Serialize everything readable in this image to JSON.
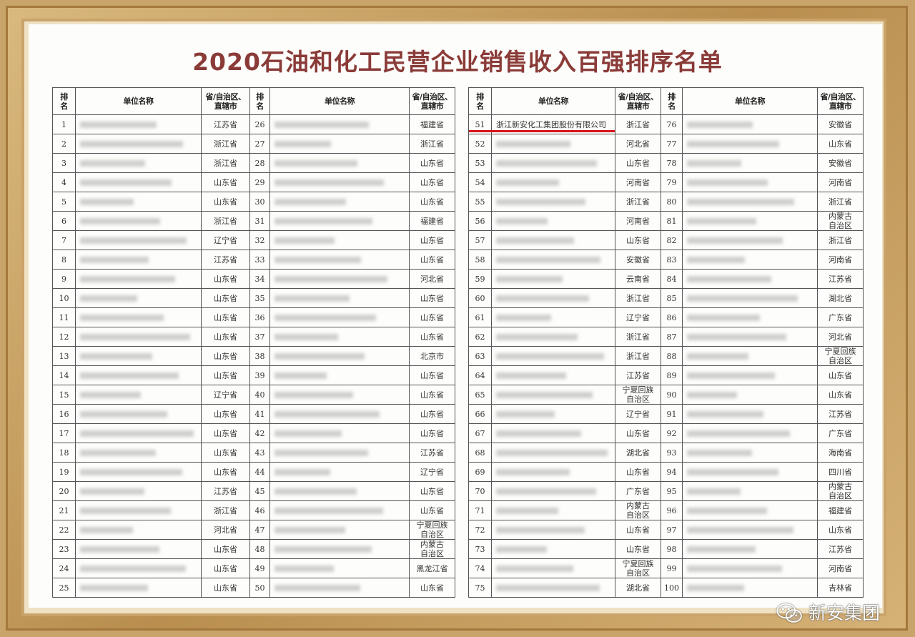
{
  "title": "2020石油和化工民营企业销售收入百强排序名单",
  "headers": {
    "rank": "排\n名",
    "name": "单位名称",
    "province": "省/自治区、\n直辖市"
  },
  "highlight_color": "#d8141a",
  "highlighted_company": "浙江新安化工集团股份有限公司",
  "columns": [
    {
      "start": 1,
      "provinces": [
        "江苏省",
        "浙江省",
        "浙江省",
        "山东省",
        "山东省",
        "浙江省",
        "辽宁省",
        "江苏省",
        "山东省",
        "山东省",
        "山东省",
        "山东省",
        "山东省",
        "山东省",
        "辽宁省",
        "山东省",
        "山东省",
        "山东省",
        "山东省",
        "江苏省",
        "浙江省",
        "河北省",
        "山东省",
        "山东省",
        "山东省"
      ]
    },
    {
      "start": 26,
      "provinces": [
        "福建省",
        "浙江省",
        "山东省",
        "山东省",
        "山东省",
        "福建省",
        "山东省",
        "山东省",
        "河北省",
        "山东省",
        "山东省",
        "山东省",
        "北京市",
        "山东省",
        "山东省",
        "山东省",
        "山东省",
        "江苏省",
        "辽宁省",
        "山东省",
        "山东省",
        "宁夏回族\n自治区",
        "内蒙古\n自治区",
        "黑龙江省",
        "山东省"
      ]
    },
    {
      "start": 51,
      "provinces": [
        "浙江省",
        "河北省",
        "山东省",
        "河南省",
        "浙江省",
        "河南省",
        "山东省",
        "安徽省",
        "云南省",
        "浙江省",
        "辽宁省",
        "浙江省",
        "浙江省",
        "江苏省",
        "宁夏回族\n自治区",
        "辽宁省",
        "山东省",
        "湖北省",
        "山东省",
        "广东省",
        "内蒙古\n自治区",
        "山东省",
        "山东省",
        "宁夏回族\n自治区",
        "湖北省"
      ]
    },
    {
      "start": 76,
      "provinces": [
        "安徽省",
        "山东省",
        "安徽省",
        "河南省",
        "浙江省",
        "内蒙古\n自治区",
        "浙江省",
        "河南省",
        "江苏省",
        "湖北省",
        "广东省",
        "河北省",
        "宁夏回族\n自治区",
        "山东省",
        "山东省",
        "江苏省",
        "广东省",
        "海南省",
        "四川省",
        "内蒙古\n自治区",
        "福建省",
        "山东省",
        "江苏省",
        "河南省",
        "吉林省"
      ]
    }
  ],
  "watermark": {
    "icon": "wechat-icon",
    "text": "新安集团"
  }
}
